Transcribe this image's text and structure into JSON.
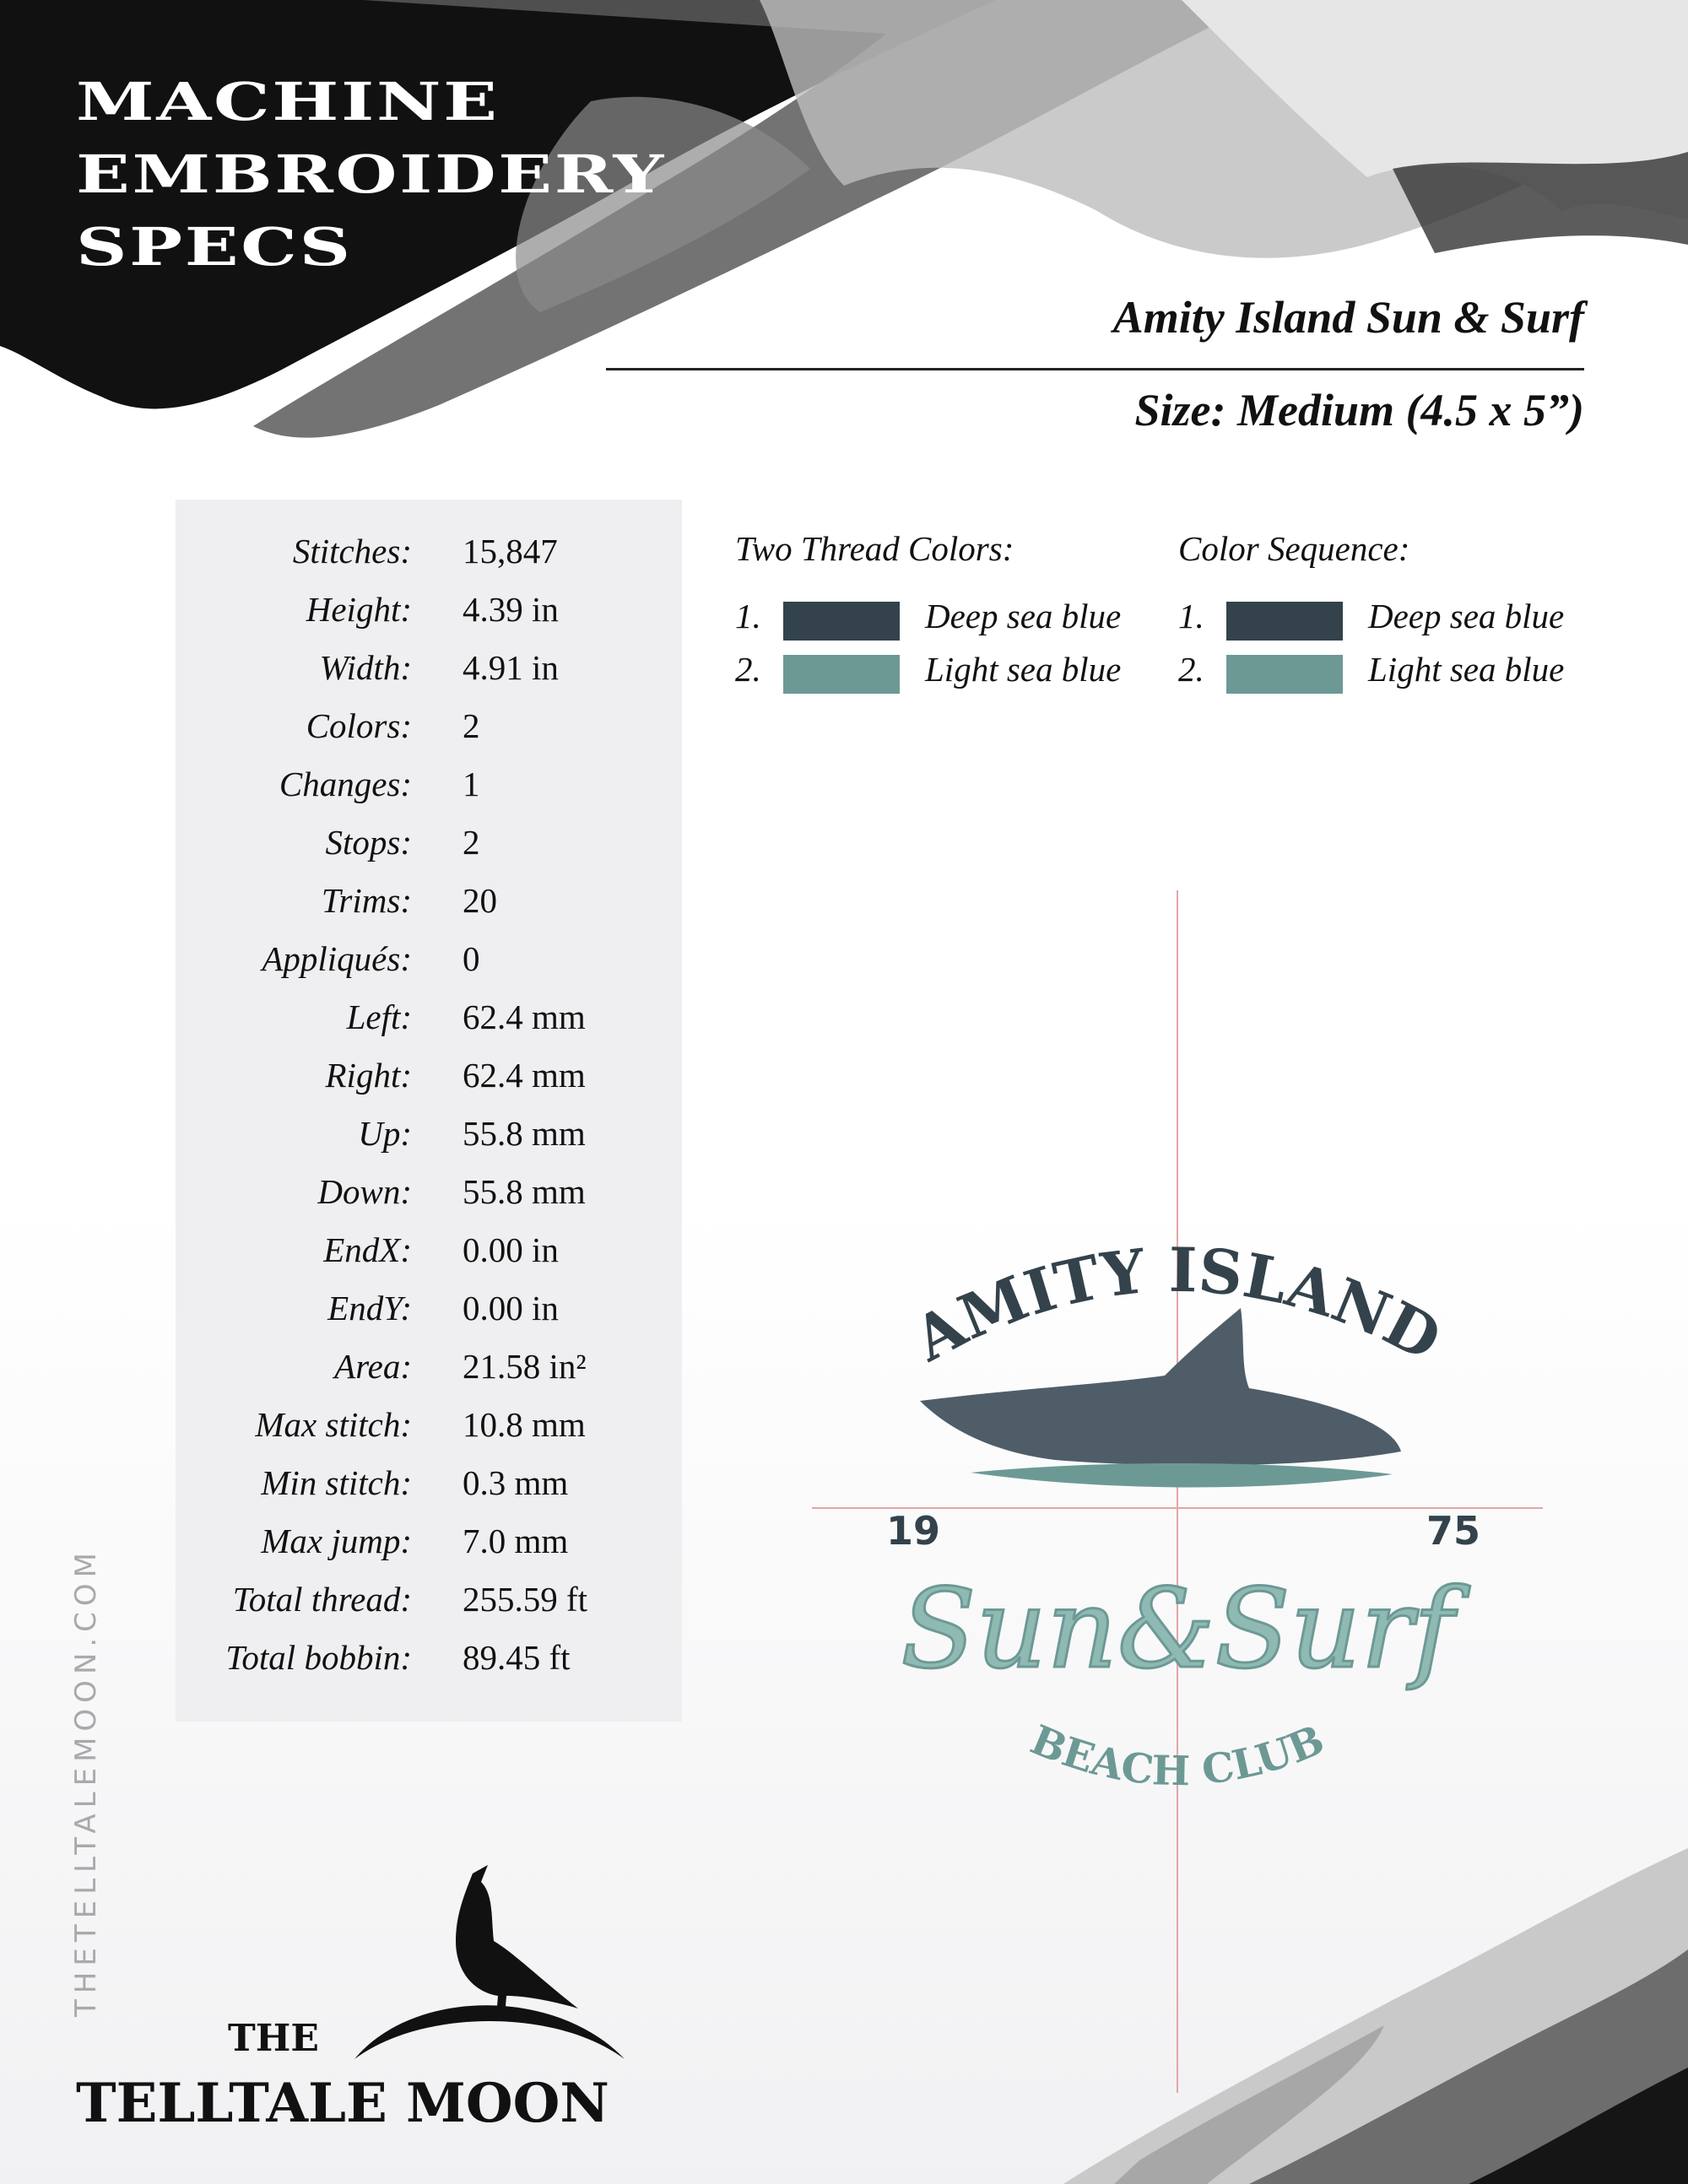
{
  "header": {
    "title_lines": [
      "MACHINE",
      "EMBROIDERY",
      "SPECS"
    ],
    "design_name": "Amity Island Sun & Surf",
    "design_size": "Size: Medium (4.5 x 5”)"
  },
  "stats": [
    {
      "label": "Stitches:",
      "value": "15,847"
    },
    {
      "label": "Height:",
      "value": "4.39 in"
    },
    {
      "label": "Width:",
      "value": "4.91 in"
    },
    {
      "label": "Colors:",
      "value": "2"
    },
    {
      "label": "Changes:",
      "value": "1"
    },
    {
      "label": "Stops:",
      "value": "2"
    },
    {
      "label": "Trims:",
      "value": "20"
    },
    {
      "label": "Appliqués:",
      "value": "0"
    },
    {
      "label": "Left:",
      "value": "62.4 mm"
    },
    {
      "label": "Right:",
      "value": "62.4 mm"
    },
    {
      "label": "Up:",
      "value": "55.8 mm"
    },
    {
      "label": "Down:",
      "value": "55.8 mm"
    },
    {
      "label": "EndX:",
      "value": "0.00 in"
    },
    {
      "label": "EndY:",
      "value": "0.00 in"
    },
    {
      "label": "Area:",
      "value": "21.58 in²"
    },
    {
      "label": "Max stitch:",
      "value": "10.8 mm"
    },
    {
      "label": "Min stitch:",
      "value": "0.3 mm"
    },
    {
      "label": "Max jump:",
      "value": "7.0 mm"
    },
    {
      "label": "Total thread:",
      "value": "255.59 ft"
    },
    {
      "label": "Total bobbin:",
      "value": "89.45 ft"
    }
  ],
  "thread_colors": {
    "heading": "Two Thread Colors:",
    "items": [
      {
        "num": "1.",
        "name": "Deep sea blue",
        "color": "#33424b"
      },
      {
        "num": "2.",
        "name": "Light sea blue",
        "color": "#6d9995"
      }
    ]
  },
  "color_sequence": {
    "heading": "Color Sequence:",
    "items": [
      {
        "num": "1.",
        "name": "Deep sea blue",
        "color": "#33424b"
      },
      {
        "num": "2.",
        "name": "Light sea blue",
        "color": "#6d9995"
      }
    ]
  },
  "design_preview": {
    "top_text": "AMITY ISLAND",
    "year_left": "19",
    "year_right": "75",
    "script_text": "Sun&Surf",
    "bottom_text": "BEACH CLUB"
  },
  "footer": {
    "website": "THETELLTALEMOON.COM",
    "brand_the": "THE",
    "brand_name": "TELLTALE MOON"
  }
}
